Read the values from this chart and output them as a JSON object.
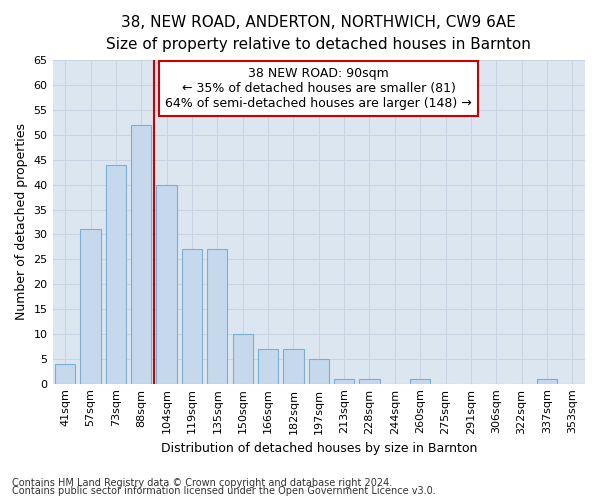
{
  "title": "38, NEW ROAD, ANDERTON, NORTHWICH, CW9 6AE",
  "subtitle": "Size of property relative to detached houses in Barnton",
  "xlabel": "Distribution of detached houses by size in Barnton",
  "ylabel": "Number of detached properties",
  "footer_line1": "Contains HM Land Registry data © Crown copyright and database right 2024.",
  "footer_line2": "Contains public sector information licensed under the Open Government Licence v3.0.",
  "categories": [
    "41sqm",
    "57sqm",
    "73sqm",
    "88sqm",
    "104sqm",
    "119sqm",
    "135sqm",
    "150sqm",
    "166sqm",
    "182sqm",
    "197sqm",
    "213sqm",
    "228sqm",
    "244sqm",
    "260sqm",
    "275sqm",
    "291sqm",
    "306sqm",
    "322sqm",
    "337sqm",
    "353sqm"
  ],
  "values": [
    4,
    31,
    44,
    52,
    40,
    27,
    27,
    10,
    7,
    7,
    5,
    1,
    1,
    0,
    1,
    0,
    0,
    0,
    0,
    1,
    0
  ],
  "ylim": [
    0,
    65
  ],
  "yticks": [
    0,
    5,
    10,
    15,
    20,
    25,
    30,
    35,
    40,
    45,
    50,
    55,
    60,
    65
  ],
  "bar_color": "#c6d9ec",
  "bar_edge_color": "#7aafd4",
  "grid_color": "#c8d4e3",
  "background_color": "#dce6f0",
  "plot_bg_color": "#dce6f0",
  "property_line_x": 3.5,
  "annotation_line1": "38 NEW ROAD: 90sqm",
  "annotation_line2": "← 35% of detached houses are smaller (81)",
  "annotation_line3": "64% of semi-detached houses are larger (148) →",
  "annotation_box_color": "white",
  "annotation_box_edge": "#cc0000",
  "property_line_color": "#cc0000",
  "title_fontsize": 11,
  "subtitle_fontsize": 10,
  "tick_fontsize": 8,
  "ylabel_fontsize": 9,
  "xlabel_fontsize": 9,
  "annotation_fontsize": 9,
  "footer_fontsize": 7
}
